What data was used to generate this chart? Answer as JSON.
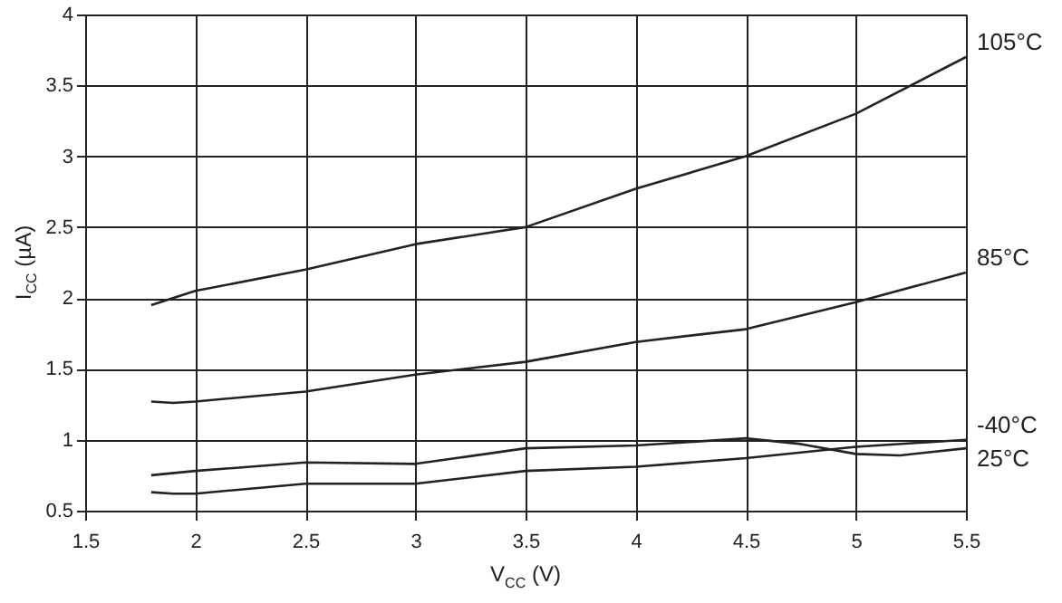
{
  "chart_data": {
    "type": "line",
    "xlabel": "V$_{CC}$ (V)",
    "ylabel": "I$_{CC}$ (µA)",
    "xlim": [
      1.5,
      5.5
    ],
    "ylim": [
      0.5,
      4
    ],
    "xticks": [
      1.5,
      2,
      2.5,
      3,
      3.5,
      4,
      4.5,
      5,
      5.5
    ],
    "yticks": [
      0.5,
      1,
      1.5,
      2,
      2.5,
      3,
      3.5,
      4
    ],
    "grid": true,
    "marker": "none",
    "line_style": "solid",
    "series": [
      {
        "name": "105°C",
        "color": "#222222",
        "x": [
          1.8,
          2,
          2.5,
          3,
          3.5,
          4,
          4.5,
          5,
          5.5
        ],
        "values": [
          1.95,
          2.05,
          2.2,
          2.38,
          2.5,
          2.77,
          3.0,
          3.3,
          3.7
        ]
      },
      {
        "name": "85°C",
        "color": "#222222",
        "x": [
          1.8,
          1.9,
          2,
          2.5,
          3,
          3.5,
          4,
          4.5,
          5,
          5.5
        ],
        "values": [
          1.27,
          1.26,
          1.27,
          1.34,
          1.46,
          1.55,
          1.69,
          1.78,
          1.97,
          2.18
        ]
      },
      {
        "name": "-40°C",
        "color": "#222222",
        "x": [
          1.8,
          1.9,
          2,
          2.5,
          3,
          3.5,
          4,
          4.5,
          5,
          5.5
        ],
        "values": [
          0.63,
          0.62,
          0.62,
          0.69,
          0.69,
          0.78,
          0.81,
          0.87,
          0.95,
          1.0
        ]
      },
      {
        "name": "25°C",
        "color": "#222222",
        "x": [
          1.8,
          2,
          2.5,
          3,
          3.5,
          4,
          4.5,
          4.75,
          5,
          5.2,
          5.5
        ],
        "values": [
          0.75,
          0.78,
          0.84,
          0.83,
          0.94,
          0.96,
          1.01,
          0.97,
          0.9,
          0.89,
          0.94
        ]
      }
    ]
  }
}
